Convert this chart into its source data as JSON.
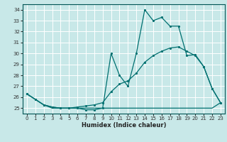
{
  "xlabel": "Humidex (Indice chaleur)",
  "xlim": [
    -0.5,
    23.5
  ],
  "ylim": [
    24.5,
    34.5
  ],
  "yticks": [
    25,
    26,
    27,
    28,
    29,
    30,
    31,
    32,
    33,
    34
  ],
  "xticks": [
    0,
    1,
    2,
    3,
    4,
    5,
    6,
    7,
    8,
    9,
    10,
    11,
    12,
    13,
    14,
    15,
    16,
    17,
    18,
    19,
    20,
    21,
    22,
    23
  ],
  "bg_color": "#c8e8e8",
  "grid_color": "#ffffff",
  "line_color": "#007070",
  "line1_x": [
    0,
    1,
    2,
    3,
    4,
    5,
    6,
    7,
    8,
    9,
    10,
    11,
    12,
    13,
    14,
    15,
    16,
    17,
    18,
    19,
    20,
    21,
    22,
    23
  ],
  "line1_y": [
    26.3,
    25.8,
    25.3,
    25.1,
    25.0,
    25.0,
    25.0,
    24.85,
    24.85,
    25.0,
    30.0,
    28.0,
    27.0,
    30.0,
    34.0,
    33.0,
    33.3,
    32.5,
    32.5,
    29.8,
    29.9,
    28.8,
    26.8,
    25.5
  ],
  "line2_x": [
    0,
    1,
    2,
    3,
    4,
    5,
    6,
    7,
    8,
    9,
    10,
    11,
    12,
    13,
    14,
    15,
    16,
    17,
    18,
    19,
    20,
    21,
    22,
    23
  ],
  "line2_y": [
    26.3,
    25.8,
    25.3,
    25.0,
    25.0,
    25.0,
    25.0,
    25.0,
    25.0,
    25.0,
    25.0,
    25.0,
    25.0,
    25.0,
    25.0,
    25.0,
    25.0,
    25.0,
    25.0,
    25.0,
    25.0,
    25.0,
    25.0,
    25.5
  ],
  "line3_x": [
    0,
    1,
    2,
    3,
    4,
    5,
    6,
    7,
    8,
    9,
    10,
    11,
    12,
    13,
    14,
    15,
    16,
    17,
    18,
    19,
    20,
    21,
    22,
    23
  ],
  "line3_y": [
    26.3,
    25.8,
    25.3,
    25.1,
    25.0,
    25.0,
    25.1,
    25.2,
    25.3,
    25.5,
    26.5,
    27.2,
    27.5,
    28.2,
    29.2,
    29.8,
    30.2,
    30.5,
    30.6,
    30.2,
    29.8,
    28.8,
    26.8,
    25.5
  ]
}
